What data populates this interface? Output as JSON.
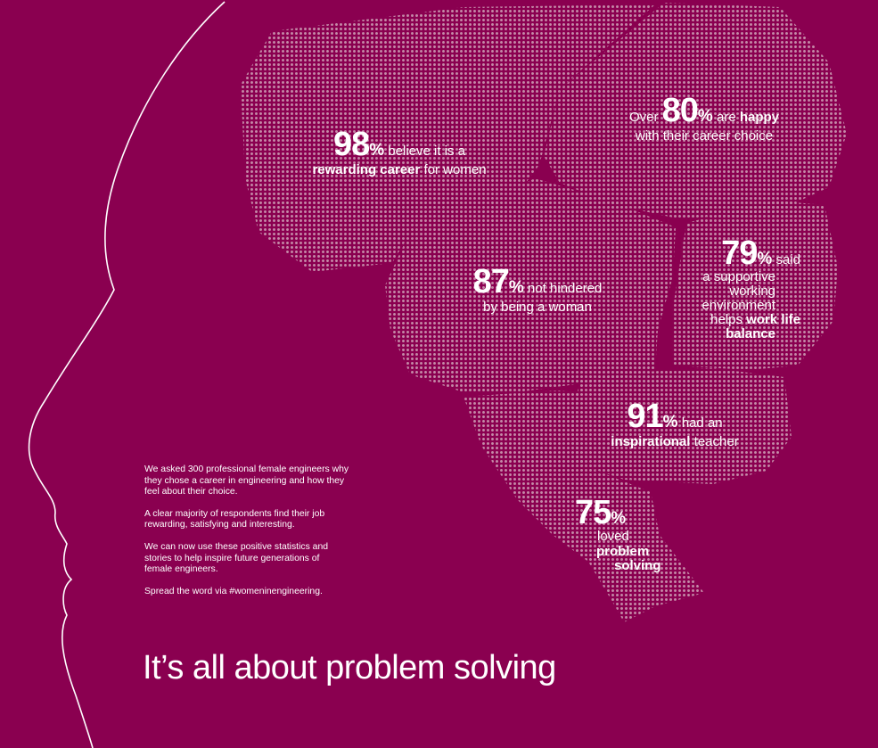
{
  "colors": {
    "background": "#8a0050",
    "text": "#ffffff",
    "dots": "#c58aa8"
  },
  "stats": {
    "s98": {
      "num": "98",
      "pct": "%",
      "line1": " believe it is a",
      "bold2": "rewarding career",
      "line2": " for women"
    },
    "s80": {
      "pre": "Over ",
      "num": "80",
      "pct": "%",
      "mid": " are ",
      "bold": "happy",
      "line2": "with their career choice"
    },
    "s87": {
      "num": "87",
      "pct": "%",
      "line1": " not hindered",
      "line2": "by being a woman"
    },
    "s79": {
      "num": "79",
      "pct": "%",
      "line1": " said",
      "l2": "a supportive",
      "l3": "working",
      "l4": "environment",
      "l5a": "helps ",
      "l5b": "work life",
      "l6": "balance"
    },
    "s91": {
      "num": "91",
      "pct": "%",
      "line1": " had an",
      "bold2": "inspirational",
      "line2": " teacher"
    },
    "s75": {
      "num": "75",
      "pct": "%",
      "l2": "loved",
      "l3": "problem",
      "l4": "solving"
    }
  },
  "intro": {
    "p1": "We asked 300 professional female engineers why they chose a career in engineering and how they feel about their choice.",
    "p2": "A clear majority of respondents find their job rewarding, satisfying and interesting.",
    "p3": "We can now use these positive statistics and stories to help inspire future generations of female engineers.",
    "p4": "Spread the word via #womeninengineering."
  },
  "headline": "It’s all about problem solving"
}
